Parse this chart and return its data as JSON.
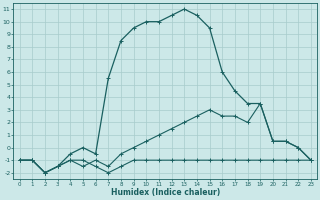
{
  "xlabel": "Humidex (Indice chaleur)",
  "background_color": "#cce8e8",
  "grid_color": "#a8cccc",
  "line_color": "#1a6060",
  "xlim": [
    -0.5,
    23.5
  ],
  "ylim": [
    -2.5,
    11.5
  ],
  "xticks": [
    0,
    1,
    2,
    3,
    4,
    5,
    6,
    7,
    8,
    9,
    10,
    11,
    12,
    13,
    14,
    15,
    16,
    17,
    18,
    19,
    20,
    21,
    22,
    23
  ],
  "yticks": [
    -2,
    -1,
    0,
    1,
    2,
    3,
    4,
    5,
    6,
    7,
    8,
    9,
    10,
    11
  ],
  "line_bottom_x": [
    0,
    1,
    2,
    3,
    4,
    5,
    6,
    7,
    8,
    9,
    10,
    11,
    12,
    13,
    14,
    15,
    16,
    17,
    18,
    19,
    20,
    21,
    22,
    23
  ],
  "line_bottom_y": [
    -1,
    -1,
    -2,
    -1.5,
    -1,
    -1,
    -1.5,
    -2,
    -1.5,
    -1,
    -1,
    -1,
    -1,
    -1,
    -1,
    -1,
    -1,
    -1,
    -1,
    -1,
    -1,
    -1,
    -1,
    -1
  ],
  "line_mid_x": [
    0,
    1,
    2,
    3,
    4,
    5,
    6,
    7,
    8,
    9,
    10,
    11,
    12,
    13,
    14,
    15,
    16,
    17,
    18,
    19,
    20,
    21,
    22,
    23
  ],
  "line_mid_y": [
    -1,
    -1,
    -2,
    -1.5,
    -1,
    -1.5,
    -1,
    -1.5,
    -0.5,
    0,
    0.5,
    1,
    1.5,
    2,
    2.5,
    3,
    2.5,
    2.5,
    2,
    3.5,
    0.5,
    0.5,
    0,
    -1
  ],
  "line_main_x": [
    0,
    1,
    2,
    3,
    4,
    5,
    6,
    7,
    8,
    9,
    10,
    11,
    12,
    13,
    14,
    15,
    16,
    17,
    18,
    19,
    20,
    21,
    22,
    23
  ],
  "line_main_y": [
    -1,
    -1,
    -2,
    -1.5,
    -0.5,
    0,
    -0.5,
    5.5,
    8.5,
    9.5,
    10,
    10,
    10.5,
    11,
    10.5,
    9.5,
    6,
    4.5,
    3.5,
    3.5,
    0.5,
    0.5,
    0,
    -1
  ]
}
